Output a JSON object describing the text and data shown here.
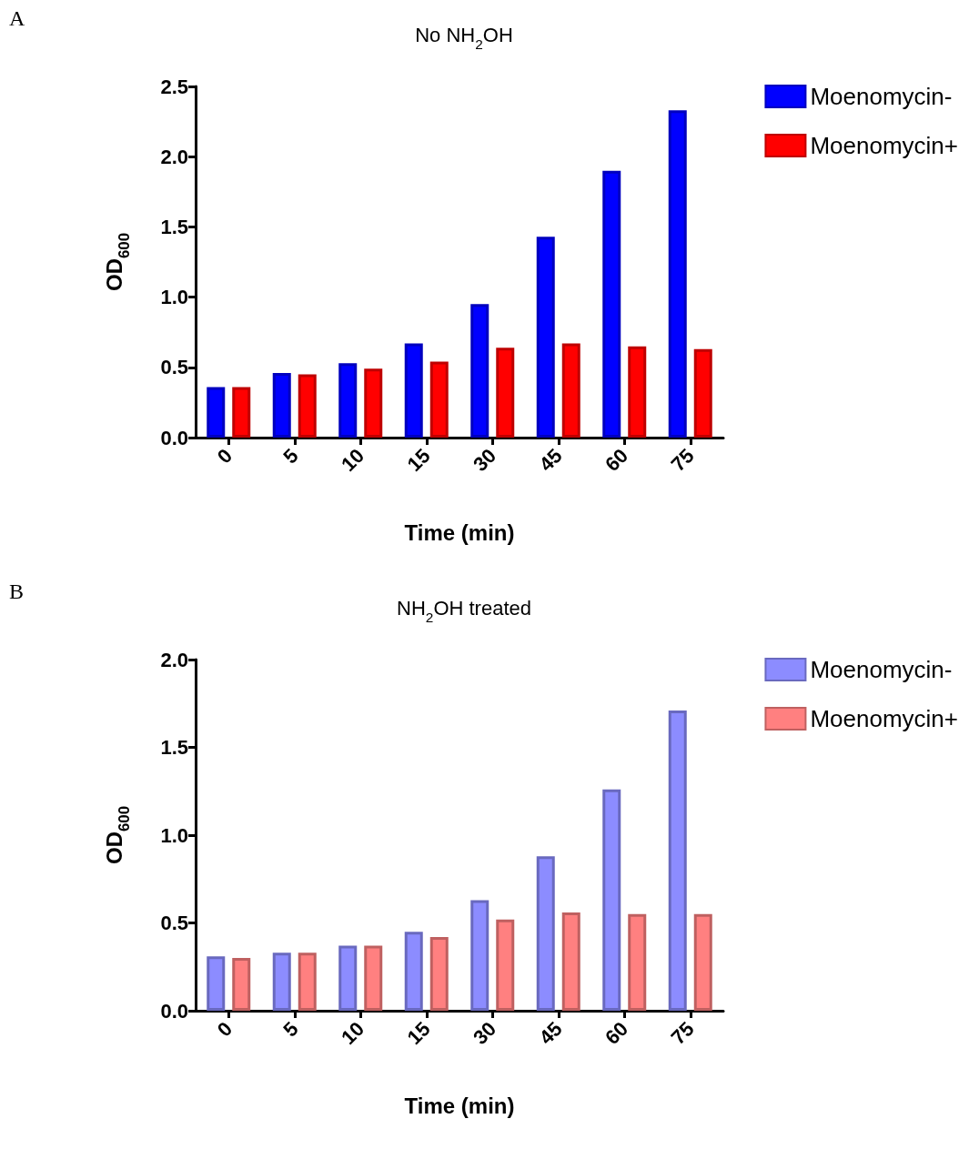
{
  "chart_data": [
    {
      "type": "bar",
      "title": "No NH$_{2}$OH",
      "xlabel": "Time (min)",
      "ylabel": "OD$_{600}$",
      "annotations": [
        "A"
      ],
      "categories": [
        "0",
        "5",
        "10",
        "15",
        "30",
        "45",
        "60",
        "75"
      ],
      "series": [
        {
          "name": "Moenomycin-",
          "color": "#0000ff",
          "values": [
            0.36,
            0.46,
            0.53,
            0.67,
            0.95,
            1.43,
            1.9,
            2.33
          ]
        },
        {
          "name": "Moenomycin+",
          "color": "#ff0000",
          "values": [
            0.36,
            0.45,
            0.49,
            0.54,
            0.64,
            0.67,
            0.65,
            0.63
          ]
        }
      ],
      "ylim": [
        0,
        2.5
      ],
      "yticks": [
        {
          "value": 0,
          "label": "0.0"
        },
        0.5,
        {
          "value": 1,
          "label": "1.0"
        },
        1.5,
        {
          "value": 2,
          "label": "2.0"
        },
        2.5
      ],
      "grid": false,
      "legend": "top right"
    },
    {
      "type": "bar",
      "title": "NH$_{2}$OH treated",
      "xlabel": "Time (min)",
      "ylabel": "OD$_{600}$",
      "annotations": [
        "B"
      ],
      "categories": [
        "0",
        "5",
        "10",
        "15",
        "30",
        "45",
        "60",
        "75"
      ],
      "series": [
        {
          "name": "Moenomycin-",
          "color": "#8c8cff",
          "values": [
            0.31,
            0.33,
            0.37,
            0.45,
            0.63,
            0.88,
            1.26,
            1.71
          ]
        },
        {
          "name": "Moenomycin+",
          "color": "#ff8080",
          "values": [
            0.3,
            0.33,
            0.37,
            0.42,
            0.52,
            0.56,
            0.55,
            0.55
          ]
        }
      ],
      "ylim": [
        0,
        2
      ],
      "yticks": [
        {
          "value": 0,
          "label": "0.0"
        },
        0.5,
        {
          "value": 1,
          "label": "1.0"
        },
        1.5,
        {
          "value": 2,
          "label": "2.0"
        }
      ],
      "grid": false,
      "legend": "top right"
    }
  ]
}
